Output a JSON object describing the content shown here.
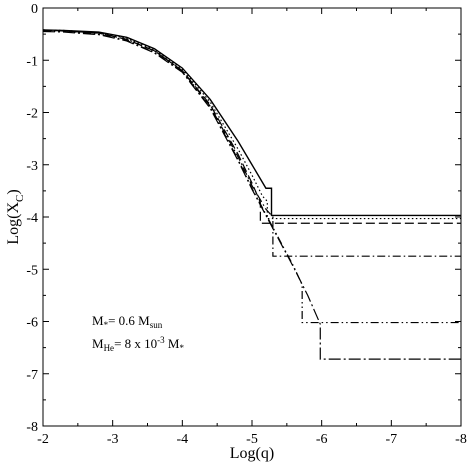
{
  "chart_data": {
    "type": "line",
    "title": "",
    "xlabel": "Log(q)",
    "ylabel_main": "Log(X",
    "ylabel_sub": "C",
    "ylabel_close": ")",
    "xlim": [
      -2,
      -8
    ],
    "ylim": [
      -8,
      0
    ],
    "x_ticks": [
      -2,
      -3,
      -4,
      -5,
      -6,
      -7,
      -8
    ],
    "y_ticks": [
      0,
      -1,
      -2,
      -3,
      -4,
      -5,
      -6,
      -7,
      -8
    ],
    "x_tick_labels": [
      "-2",
      "-3",
      "-4",
      "-5",
      "-6",
      "-7",
      "-8"
    ],
    "y_tick_labels": [
      "0",
      "-1",
      "-2",
      "-3",
      "-4",
      "-5",
      "-6",
      "-7",
      "-8"
    ],
    "grid": false,
    "annotations": {
      "line1": {
        "main": "M",
        "sub": "*",
        "rest": "= 0.6 M",
        "sub2": "sun"
      },
      "line2": {
        "main": "M",
        "sub": "He",
        "rest": "= 8 x 10",
        "sup": "-3",
        "rest2": " M",
        "sub2": "*"
      }
    },
    "series": [
      {
        "style": "solid",
        "x": [
          -2,
          -2.3,
          -2.8,
          -3.2,
          -3.6,
          -4.0,
          -4.4,
          -4.8,
          -5.0,
          -5.2,
          -5.28,
          -5.28,
          -8.0
        ],
        "y": [
          -0.42,
          -0.43,
          -0.46,
          -0.56,
          -0.78,
          -1.15,
          -1.75,
          -2.55,
          -3.0,
          -3.45,
          -3.45,
          -3.97,
          -3.97
        ]
      },
      {
        "style": "dotted",
        "x": [
          -2,
          -2.3,
          -2.8,
          -3.2,
          -3.6,
          -4.0,
          -4.4,
          -4.8,
          -5.0,
          -5.15,
          -5.22,
          -5.22,
          -8.0
        ],
        "y": [
          -0.42,
          -0.43,
          -0.47,
          -0.58,
          -0.8,
          -1.17,
          -1.8,
          -2.7,
          -3.2,
          -3.6,
          -3.7,
          -4.03,
          -4.03
        ]
      },
      {
        "style": "dashed",
        "x": [
          -2,
          -2.3,
          -2.8,
          -3.2,
          -3.6,
          -4.0,
          -4.4,
          -4.8,
          -5.0,
          -5.12,
          -5.12,
          -8.0
        ],
        "y": [
          -0.42,
          -0.44,
          -0.48,
          -0.6,
          -0.82,
          -1.2,
          -1.85,
          -2.8,
          -3.35,
          -3.72,
          -4.12,
          -4.12
        ]
      },
      {
        "style": "dash-dot",
        "x": [
          -2,
          -2.3,
          -2.8,
          -3.2,
          -3.6,
          -4.0,
          -4.4,
          -4.8,
          -5.0,
          -5.2,
          -5.3,
          -5.3,
          -8.0
        ],
        "y": [
          -0.42,
          -0.44,
          -0.48,
          -0.6,
          -0.82,
          -1.2,
          -1.88,
          -2.85,
          -3.4,
          -3.85,
          -4.0,
          -4.75,
          -4.75
        ]
      },
      {
        "style": "dash-dot-dot",
        "x": [
          -2,
          -2.3,
          -2.8,
          -3.2,
          -3.6,
          -4.0,
          -4.4,
          -4.8,
          -5.0,
          -5.2,
          -5.4,
          -5.6,
          -5.72,
          -5.72,
          -8.0
        ],
        "y": [
          -0.44,
          -0.45,
          -0.5,
          -0.62,
          -0.85,
          -1.22,
          -1.9,
          -2.9,
          -3.45,
          -3.95,
          -4.45,
          -4.95,
          -5.3,
          -6.02,
          -6.02
        ]
      },
      {
        "style": "long-dash-dot",
        "x": [
          -2,
          -2.3,
          -2.8,
          -3.2,
          -3.6,
          -4.0,
          -4.4,
          -4.8,
          -5.0,
          -5.2,
          -5.4,
          -5.6,
          -5.8,
          -5.98,
          -5.98,
          -8.0
        ],
        "y": [
          -0.45,
          -0.46,
          -0.51,
          -0.63,
          -0.86,
          -1.23,
          -1.92,
          -2.92,
          -3.47,
          -3.97,
          -4.47,
          -4.97,
          -5.5,
          -6.05,
          -6.72,
          -6.72
        ]
      }
    ]
  }
}
